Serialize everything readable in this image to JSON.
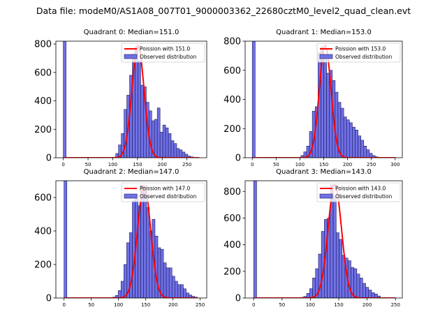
{
  "figure": {
    "title": "Data file: modeM0/AS1A08_007T01_9000003362_22680cztM0_level2_quad_clean.evt"
  },
  "colors": {
    "bar_fill": "#7070e6",
    "bar_edge": "#1a1a5a",
    "curve": "#ff0000"
  },
  "chart_data": [
    {
      "type": "bar+line",
      "title": "Quadrant 0: Median=151.0",
      "legend": [
        "Poission with 151.0",
        "Observed distribution"
      ],
      "xlim": [
        -15,
        290
      ],
      "ylim": [
        0,
        820
      ],
      "xticks": [
        0,
        50,
        100,
        150,
        200,
        250
      ],
      "yticks": [
        0,
        200,
        400,
        600,
        800
      ],
      "bin_width": 5.6,
      "bins": [
        {
          "x": 0,
          "y": 830
        },
        {
          "x": 106,
          "y": 30
        },
        {
          "x": 111.6,
          "y": 90
        },
        {
          "x": 117.2,
          "y": 170
        },
        {
          "x": 122.8,
          "y": 340
        },
        {
          "x": 128.4,
          "y": 440
        },
        {
          "x": 134,
          "y": 580
        },
        {
          "x": 139.6,
          "y": 730
        },
        {
          "x": 145.2,
          "y": 780
        },
        {
          "x": 150.8,
          "y": 680
        },
        {
          "x": 156.4,
          "y": 510
        },
        {
          "x": 162,
          "y": 500
        },
        {
          "x": 167.6,
          "y": 390
        },
        {
          "x": 173.2,
          "y": 330
        },
        {
          "x": 178.8,
          "y": 260
        },
        {
          "x": 184.4,
          "y": 270
        },
        {
          "x": 190,
          "y": 350
        },
        {
          "x": 195.6,
          "y": 180
        },
        {
          "x": 201.2,
          "y": 230
        },
        {
          "x": 206.8,
          "y": 210
        },
        {
          "x": 212.4,
          "y": 170
        },
        {
          "x": 218,
          "y": 120
        },
        {
          "x": 223.6,
          "y": 100
        },
        {
          "x": 229.2,
          "y": 65
        },
        {
          "x": 234.8,
          "y": 55
        },
        {
          "x": 240.4,
          "y": 40
        },
        {
          "x": 246,
          "y": 25
        },
        {
          "x": 251.6,
          "y": 12
        },
        {
          "x": 257.2,
          "y": 6
        },
        {
          "x": 262.8,
          "y": 3
        }
      ],
      "poisson": {
        "mean": 151.0,
        "peak": 790,
        "x_range": [
          0,
          275
        ]
      }
    },
    {
      "type": "bar+line",
      "title": "Quadrant 1: Median=153.0",
      "legend": [
        "Poission with 153.0",
        "Observed distribution"
      ],
      "xlim": [
        -15,
        315
      ],
      "ylim": [
        0,
        800
      ],
      "xticks": [
        0,
        50,
        100,
        150,
        200,
        250,
        300
      ],
      "yticks": [
        0,
        200,
        400,
        600,
        800
      ],
      "bin_width": 6,
      "bins": [
        {
          "x": 0,
          "y": 800
        },
        {
          "x": 102,
          "y": 15
        },
        {
          "x": 108,
          "y": 40
        },
        {
          "x": 114,
          "y": 80
        },
        {
          "x": 120,
          "y": 180
        },
        {
          "x": 126,
          "y": 320
        },
        {
          "x": 132,
          "y": 350
        },
        {
          "x": 138,
          "y": 720
        },
        {
          "x": 144,
          "y": 760
        },
        {
          "x": 150,
          "y": 700
        },
        {
          "x": 156,
          "y": 580
        },
        {
          "x": 162,
          "y": 600
        },
        {
          "x": 168,
          "y": 530
        },
        {
          "x": 174,
          "y": 450
        },
        {
          "x": 180,
          "y": 380
        },
        {
          "x": 186,
          "y": 340
        },
        {
          "x": 192,
          "y": 280
        },
        {
          "x": 198,
          "y": 260
        },
        {
          "x": 204,
          "y": 240
        },
        {
          "x": 210,
          "y": 210
        },
        {
          "x": 216,
          "y": 190
        },
        {
          "x": 222,
          "y": 150
        },
        {
          "x": 228,
          "y": 120
        },
        {
          "x": 234,
          "y": 80
        },
        {
          "x": 240,
          "y": 55
        },
        {
          "x": 246,
          "y": 30
        },
        {
          "x": 252,
          "y": 15
        },
        {
          "x": 258,
          "y": 6
        }
      ],
      "poisson": {
        "mean": 153.0,
        "peak": 770,
        "x_range": [
          0,
          300
        ]
      }
    },
    {
      "type": "bar+line",
      "title": "Quadrant 2: Median=147.0",
      "legend": [
        "Poission with 147.0",
        "Observed distribution"
      ],
      "xlim": [
        -15,
        262
      ],
      "ylim": [
        0,
        700
      ],
      "xticks": [
        0,
        50,
        100,
        150,
        200,
        250
      ],
      "yticks": [
        0,
        200,
        400,
        600
      ],
      "bin_width": 5.2,
      "bins": [
        {
          "x": 0,
          "y": 700
        },
        {
          "x": 89,
          "y": 5
        },
        {
          "x": 94.2,
          "y": 15
        },
        {
          "x": 99.4,
          "y": 45
        },
        {
          "x": 104.6,
          "y": 100
        },
        {
          "x": 109.8,
          "y": 200
        },
        {
          "x": 115,
          "y": 330
        },
        {
          "x": 120.2,
          "y": 390
        },
        {
          "x": 125.4,
          "y": 580
        },
        {
          "x": 130.6,
          "y": 620
        },
        {
          "x": 135.8,
          "y": 550
        },
        {
          "x": 141,
          "y": 670
        },
        {
          "x": 146.2,
          "y": 640
        },
        {
          "x": 151.4,
          "y": 540
        },
        {
          "x": 156.6,
          "y": 400
        },
        {
          "x": 161.8,
          "y": 470
        },
        {
          "x": 167,
          "y": 370
        },
        {
          "x": 172.2,
          "y": 300
        },
        {
          "x": 177.4,
          "y": 290
        },
        {
          "x": 182.6,
          "y": 210
        },
        {
          "x": 187.8,
          "y": 180
        },
        {
          "x": 193,
          "y": 180
        },
        {
          "x": 198.2,
          "y": 130
        },
        {
          "x": 203.4,
          "y": 100
        },
        {
          "x": 208.6,
          "y": 80
        },
        {
          "x": 213.8,
          "y": 80
        },
        {
          "x": 219,
          "y": 55
        },
        {
          "x": 224.2,
          "y": 30
        },
        {
          "x": 229.4,
          "y": 18
        },
        {
          "x": 234.6,
          "y": 10
        },
        {
          "x": 239.8,
          "y": 5
        }
      ],
      "poisson": {
        "mean": 147.0,
        "peak": 670,
        "x_range": [
          0,
          245
        ]
      }
    },
    {
      "type": "bar+line",
      "title": "Quadrant 3: Median=143.0",
      "legend": [
        "Poission with 143.0",
        "Observed distribution"
      ],
      "xlim": [
        -15,
        262
      ],
      "ylim": [
        0,
        880
      ],
      "xticks": [
        0,
        50,
        100,
        150,
        200,
        250
      ],
      "yticks": [
        0,
        200,
        400,
        600,
        800
      ],
      "bin_width": 5.2,
      "bins": [
        {
          "x": 0,
          "y": 880
        },
        {
          "x": 83,
          "y": 5
        },
        {
          "x": 88.2,
          "y": 12
        },
        {
          "x": 93.4,
          "y": 35
        },
        {
          "x": 98.6,
          "y": 70
        },
        {
          "x": 103.8,
          "y": 150
        },
        {
          "x": 109,
          "y": 220
        },
        {
          "x": 114.2,
          "y": 330
        },
        {
          "x": 119.4,
          "y": 500
        },
        {
          "x": 124.6,
          "y": 590
        },
        {
          "x": 129.8,
          "y": 600
        },
        {
          "x": 135,
          "y": 850
        },
        {
          "x": 140.2,
          "y": 760
        },
        {
          "x": 145.4,
          "y": 490
        },
        {
          "x": 150.6,
          "y": 440
        },
        {
          "x": 155.8,
          "y": 320
        },
        {
          "x": 161,
          "y": 300
        },
        {
          "x": 166.2,
          "y": 280
        },
        {
          "x": 171.4,
          "y": 230
        },
        {
          "x": 176.6,
          "y": 220
        },
        {
          "x": 181.8,
          "y": 180
        },
        {
          "x": 187,
          "y": 150
        },
        {
          "x": 192.2,
          "y": 110
        },
        {
          "x": 197.4,
          "y": 80
        },
        {
          "x": 202.6,
          "y": 60
        },
        {
          "x": 207.8,
          "y": 40
        },
        {
          "x": 213,
          "y": 30
        },
        {
          "x": 218.2,
          "y": 15
        }
      ],
      "poisson": {
        "mean": 143.0,
        "peak": 850,
        "x_range": [
          0,
          250
        ]
      }
    }
  ]
}
